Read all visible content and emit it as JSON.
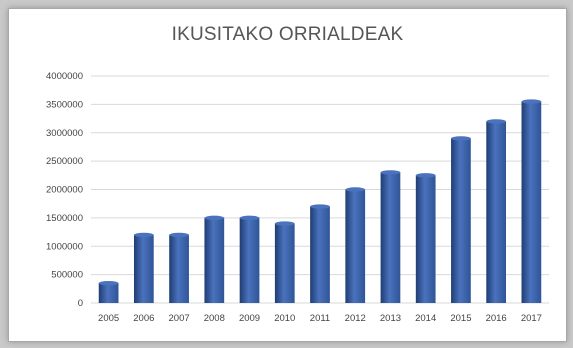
{
  "chart_data": {
    "type": "bar",
    "title": "IKUSITAKO ORRIALDEAK",
    "xlabel": "",
    "ylabel": "",
    "categories": [
      "2005",
      "2006",
      "2007",
      "2008",
      "2009",
      "2010",
      "2011",
      "2012",
      "2013",
      "2014",
      "2015",
      "2016",
      "2017"
    ],
    "values": [
      350000,
      1200000,
      1200000,
      1500000,
      1500000,
      1400000,
      1700000,
      2000000,
      2300000,
      2250000,
      2900000,
      3200000,
      3550000
    ],
    "ylim": [
      0,
      4000000
    ],
    "yticks": [
      "0",
      "500000",
      "1000000",
      "1500000",
      "2000000",
      "2500000",
      "3000000",
      "3500000",
      "4000000"
    ],
    "grid": true,
    "legend": "none",
    "bar_color": "#2f5597",
    "bar_highlight": "#4a72bd",
    "bar_shadow": "#1f3d73"
  }
}
